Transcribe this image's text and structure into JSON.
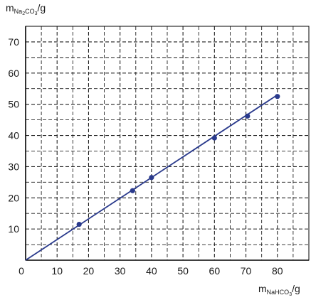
{
  "chart_data": {
    "type": "scatter",
    "ylabel": {
      "main": "m",
      "sub": "Na",
      "sub2": "2",
      "sub3": "CO",
      "sub4": "3",
      "unit": "/g"
    },
    "xlabel": {
      "main": "m",
      "sub": "NaHCO",
      "sub2": "3",
      "unit": "/g"
    },
    "xlim": [
      0,
      90
    ],
    "ylim": [
      0,
      75
    ],
    "x_ticks": [
      0,
      10,
      20,
      30,
      40,
      50,
      60,
      70,
      80
    ],
    "y_ticks": [
      10,
      20,
      30,
      40,
      50,
      60,
      70
    ],
    "grid": true,
    "grid_minor_step": {
      "x": 5,
      "y": 5
    },
    "points": [
      {
        "x": 17,
        "y": 11.5
      },
      {
        "x": 34,
        "y": 22.3
      },
      {
        "x": 40,
        "y": 26.5
      },
      {
        "x": 60,
        "y": 39.2
      },
      {
        "x": 70.5,
        "y": 46.2
      },
      {
        "x": 80,
        "y": 52.5
      }
    ],
    "fit_line": {
      "from": [
        0,
        0
      ],
      "to": [
        80,
        53
      ]
    },
    "colors": {
      "series": "#2a3a8c",
      "grid": "#222222",
      "axis": "#000000"
    }
  }
}
